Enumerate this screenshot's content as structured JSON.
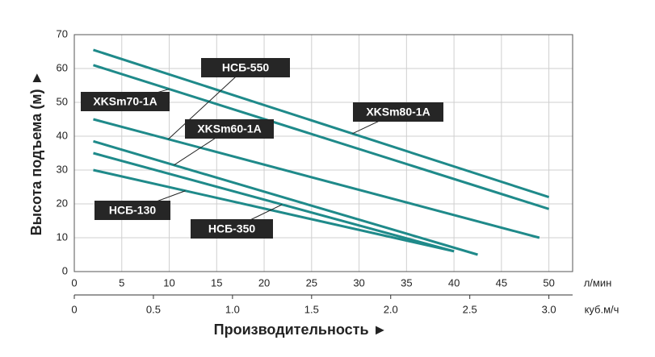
{
  "chart_data": {
    "type": "line",
    "y_title": "Высота подъема (м) ►",
    "x_title": "Производительность ►",
    "x_unit": "л/мин",
    "x2_unit": "куб.м/ч",
    "xlim": [
      0,
      52.5
    ],
    "xticks": [
      0,
      5,
      10,
      15,
      20,
      25,
      30,
      35,
      40,
      45,
      50
    ],
    "x2lim": [
      0,
      3.15
    ],
    "x2ticks": [
      0,
      0.5,
      {
        "value": 1,
        "label": "1.0"
      },
      1.5,
      {
        "value": 2,
        "label": "2.0"
      },
      2.5,
      {
        "value": 3,
        "label": "3.0"
      }
    ],
    "ylim": [
      0,
      70
    ],
    "yticks": [
      0,
      10,
      20,
      30,
      40,
      50,
      60,
      70
    ],
    "grid": true,
    "series": [
      {
        "name": "XKSm80-1A",
        "color": "#1f8a8a",
        "x": [
          2,
          50
        ],
        "values": [
          65.5,
          22
        ]
      },
      {
        "name": "XKSm70-1A",
        "color": "#1f8a8a",
        "x": [
          2,
          50
        ],
        "values": [
          61,
          18.5
        ]
      },
      {
        "name": "НСБ-550",
        "color": "#1f8a8a",
        "x": [
          2,
          49
        ],
        "values": [
          45,
          10
        ]
      },
      {
        "name": "XKSm60-1A",
        "color": "#1f8a8a",
        "x": [
          2,
          42.5
        ],
        "values": [
          38.5,
          5
        ]
      },
      {
        "name": "НСБ-350",
        "color": "#1f8a8a",
        "x": [
          2,
          40
        ],
        "values": [
          35,
          6
        ]
      },
      {
        "name": "НСБ-130",
        "color": "#1f8a8a",
        "x": [
          2,
          40
        ],
        "values": [
          30,
          6
        ]
      }
    ]
  }
}
